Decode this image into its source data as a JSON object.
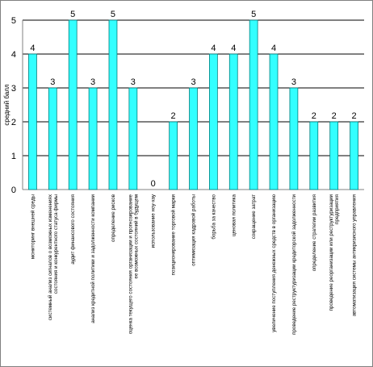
{
  "chart_data": {
    "type": "bar",
    "title": "",
    "xlabel": "",
    "ylabel": "средний балл",
    "ylim": [
      0,
      5
    ],
    "yticks": [
      0,
      1,
      2,
      3,
      4,
      5
    ],
    "grid": true,
    "legend": "none",
    "bar_color": "#33ffff",
    "bar_edge_color": "#007f7f",
    "categories": [
      [
        "мониторинг внешней среды"
      ],
      [
        "системный анализ сигналов о возможных изменениях",
        "состояния и конкурентного статуса фирмы"
      ],
      [
        "аудит финансового состояния"
      ],
      [
        "анализ кредитной политики и задолженности компании"
      ],
      [
        "определение рисков"
      ],
      [
        "оценка текущего состояния организации и прогнозирование",
        "ее возможных состояний в будущем"
      ],
      [
        "использование ноу-хау"
      ],
      [
        "позиционирование торговой марки"
      ],
      [
        "оптимизация кадровой работы"
      ],
      [
        "борьба за качество"
      ],
      [
        "ценовая политика"
      ],
      [
        "сокращение затрат"
      ],
      [
        "увеличение поступления денежных средств в организацию"
      ],
      [
        "проведение реструктуризации кредиторской задолженности"
      ],
      [
        "определение стратегии развития"
      ],
      [
        "проведение реорганизации или реструктуризации",
        "предприятия"
      ],
      [
        "автоматизация системы антикризисного управления"
      ]
    ],
    "values": [
      4,
      3,
      5,
      3,
      5,
      3,
      0,
      2,
      3,
      4,
      4,
      5,
      4,
      3,
      2,
      2,
      2
    ],
    "data_labels": [
      "4",
      "3",
      "5",
      "3",
      "5",
      "3",
      "0",
      "2",
      "3",
      "4",
      "4",
      "5",
      "4",
      "3",
      "2",
      "2",
      "2"
    ]
  }
}
